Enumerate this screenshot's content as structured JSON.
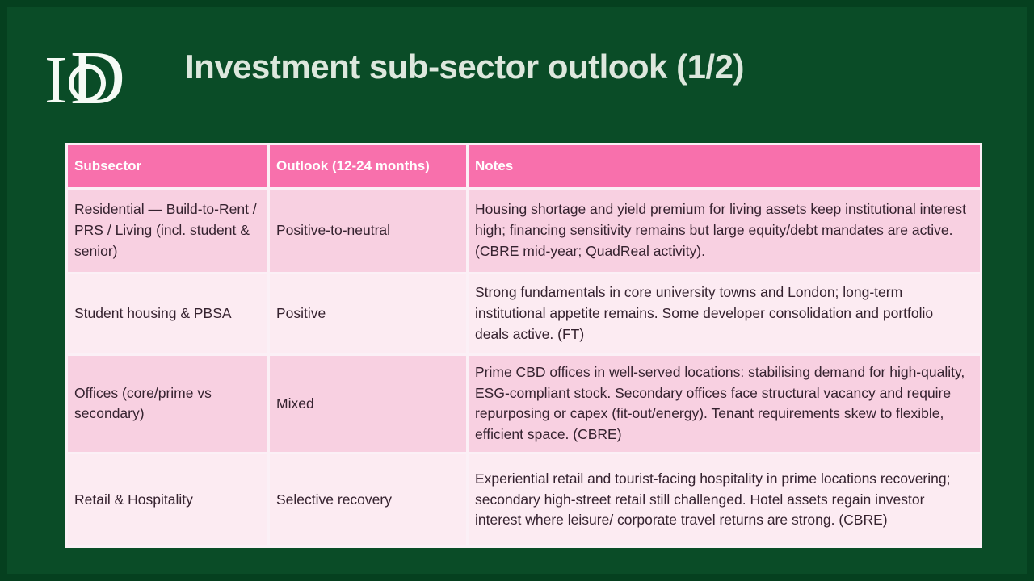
{
  "slide": {
    "title": "Investment sub-sector outlook (1/2)",
    "logo": {
      "name": "IoD",
      "letter_i": "I",
      "letter_d": "D"
    }
  },
  "table": {
    "columns": [
      "Subsector",
      "Outlook (12-24 months)",
      "Notes"
    ],
    "rows": [
      {
        "subsector": "Residential — Build-to-Rent / PRS / Living (incl. student & senior)",
        "outlook": "Positive-to-neutral",
        "notes": "Housing shortage and yield premium for living assets keep institutional interest high; financing sensitivity remains but large equity/debt mandates are active. (CBRE mid-year; QuadReal activity)."
      },
      {
        "subsector": "Student housing & PBSA",
        "outlook": "Positive",
        "notes": "Strong fundamentals in core university towns and London; long-term institutional appetite remains. Some developer consolidation and portfolio deals active. (FT)"
      },
      {
        "subsector": "Offices (core/prime vs secondary)",
        "outlook": "Mixed",
        "notes": "Prime CBD offices in well-served locations: stabilising demand for high-quality, ESG-compliant stock. Secondary offices face structural vacancy and require repurposing or capex (fit-out/energy). Tenant requirements skew to flexible, efficient space. (CBRE)"
      },
      {
        "subsector": "Retail & Hospitality",
        "outlook": "Selective recovery",
        "notes": "Experiential retail and tourist-facing hospitality in prime locations recovering; secondary high-street retail still challenged. Hotel assets regain investor interest where leisure/ corporate travel returns are strong. (CBRE)"
      }
    ]
  },
  "colors": {
    "background_green": "#0a4c27",
    "edge_green": "#05401f",
    "header_pink": "#f870ac",
    "row_pink_dark": "#f8d0e1",
    "row_pink_light": "#fcebf2",
    "table_border_white": "#fbf0f6",
    "title_text": "#dde7dd",
    "cell_text": "#35222f",
    "header_text": "#ffffff",
    "logo_white": "#f5faf5"
  }
}
